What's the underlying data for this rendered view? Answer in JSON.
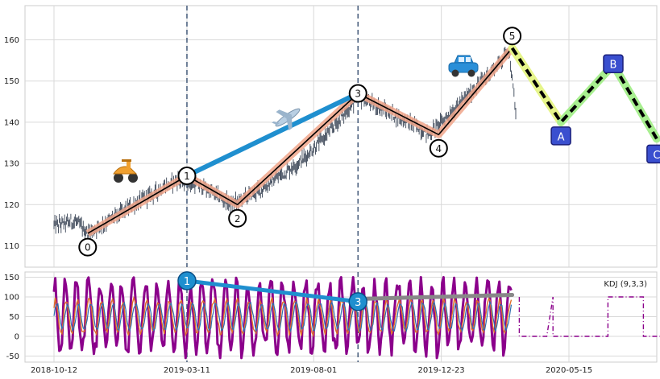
{
  "chart_data": [
    {
      "type": "line",
      "panel": "price",
      "x_type": "date",
      "grid": true,
      "ylim": [
        104,
        168
      ],
      "yticks": [
        110,
        120,
        130,
        140,
        150,
        160
      ],
      "x_range": [
        "2018-10-12",
        "2020-09-10"
      ],
      "price_waypoints": [
        {
          "date": "2018-10-12",
          "value": 115
        },
        {
          "date": "2018-11-05",
          "value": 116
        },
        {
          "date": "2018-11-19",
          "value": 113
        },
        {
          "date": "2019-01-10",
          "value": 120
        },
        {
          "date": "2019-02-28",
          "value": 126
        },
        {
          "date": "2019-04-01",
          "value": 124
        },
        {
          "date": "2019-04-30",
          "value": 120
        },
        {
          "date": "2019-06-05",
          "value": 124
        },
        {
          "date": "2019-07-20",
          "value": 131
        },
        {
          "date": "2019-08-20",
          "value": 138
        },
        {
          "date": "2019-09-20",
          "value": 146
        },
        {
          "date": "2019-10-20",
          "value": 143
        },
        {
          "date": "2019-11-25",
          "value": 139
        },
        {
          "date": "2019-12-09",
          "value": 137
        },
        {
          "date": "2020-01-20",
          "value": 146
        },
        {
          "date": "2020-02-25",
          "value": 154
        },
        {
          "date": "2020-03-08",
          "value": 158
        },
        {
          "date": "2020-03-16",
          "value": 142
        }
      ],
      "wave_points": [
        {
          "label": "0",
          "date": "2018-11-19",
          "value": 113
        },
        {
          "label": "1",
          "date": "2019-03-11",
          "value": 127
        },
        {
          "label": "2",
          "date": "2019-05-07",
          "value": 120
        },
        {
          "label": "3",
          "date": "2019-09-20",
          "value": 147
        },
        {
          "label": "4",
          "date": "2019-12-20",
          "value": 137
        },
        {
          "label": "5",
          "date": "2020-03-12",
          "value": 158
        }
      ],
      "projection_points": [
        {
          "label": "A",
          "date": "2020-05-06",
          "value": 140
        },
        {
          "label": "B",
          "date": "2020-07-04",
          "value": 154
        },
        {
          "label": "C",
          "date": "2020-08-22",
          "value": 136
        }
      ],
      "trend_line": {
        "from": {
          "date": "2019-03-11",
          "value": 127
        },
        "to": {
          "date": "2019-09-20",
          "value": 147
        }
      },
      "vlines": [
        "2019-03-11",
        "2019-09-20"
      ],
      "icons": [
        "scooter-icon",
        "airplane-icon",
        "car-icon"
      ]
    },
    {
      "type": "line",
      "panel": "indicator",
      "legend": "KDJ (9,3,3)",
      "legend_position": "top-right",
      "ylim": [
        -57,
        160
      ],
      "yticks": [
        -50,
        0,
        50,
        100,
        150
      ],
      "xticks": [
        "2018-10-12",
        "2019-03-11",
        "2019-08-01",
        "2019-12-23",
        "2020-05-15"
      ],
      "divergence": {
        "markers": [
          {
            "label": "1",
            "date": "2019-03-11",
            "value": 141
          },
          {
            "label": "3",
            "date": "2019-09-20",
            "value": 88
          }
        ],
        "gray_line": {
          "from": {
            "date": "2019-09-20",
            "value": 95
          },
          "to": {
            "date": "2020-03-12",
            "value": 105
          }
        }
      },
      "future_plateaus": [
        {
          "from": "2020-03-20",
          "to": "2020-04-20",
          "value": 0
        },
        {
          "from": "2020-04-27",
          "to": "2020-06-20",
          "value": 0
        },
        {
          "from": "2020-06-28",
          "to": "2020-07-30",
          "value": 100
        },
        {
          "from": "2020-08-07",
          "to": "2020-09-01",
          "value": 0
        }
      ],
      "colors": {
        "k": "#e0702a",
        "d": "#2e6fb0",
        "j": "#8b008b"
      }
    }
  ],
  "colors": {
    "wave_line": "#000000",
    "wave_glow": "#f0a48a",
    "trend_line": "#1f8fcf",
    "projection_dash": "#000000",
    "projection_glow_1": "#e6f58a",
    "projection_glow_2": "#a8ef90",
    "projection_box": "#3a4fcf",
    "vline": "#445a7a",
    "price": "#3a4556",
    "divergence_gray": "#888888"
  }
}
